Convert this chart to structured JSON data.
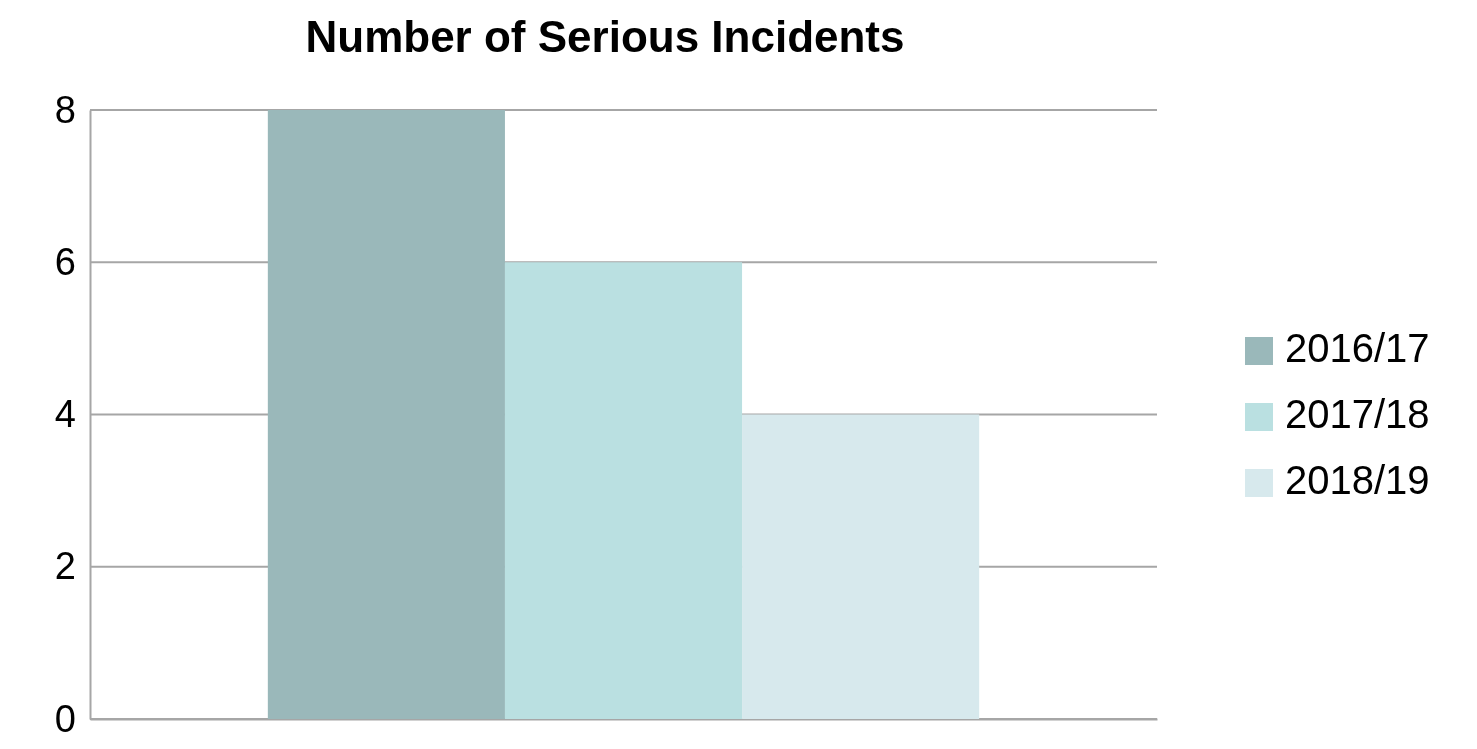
{
  "chart_data": {
    "type": "bar",
    "title": "Number of Serious Incidents",
    "categories": [
      null
    ],
    "series": [
      {
        "name": "2016/17",
        "color": "#9ab8ba",
        "values": [
          8
        ]
      },
      {
        "name": "2017/18",
        "color": "#bae0e1",
        "values": [
          6
        ]
      },
      {
        "name": "2018/19",
        "color": "#d7e9ed",
        "values": [
          4
        ]
      }
    ],
    "ylim": [
      0,
      8
    ],
    "yticks": [
      0,
      2,
      4,
      6,
      8
    ],
    "grid": "y",
    "legend": "right"
  }
}
